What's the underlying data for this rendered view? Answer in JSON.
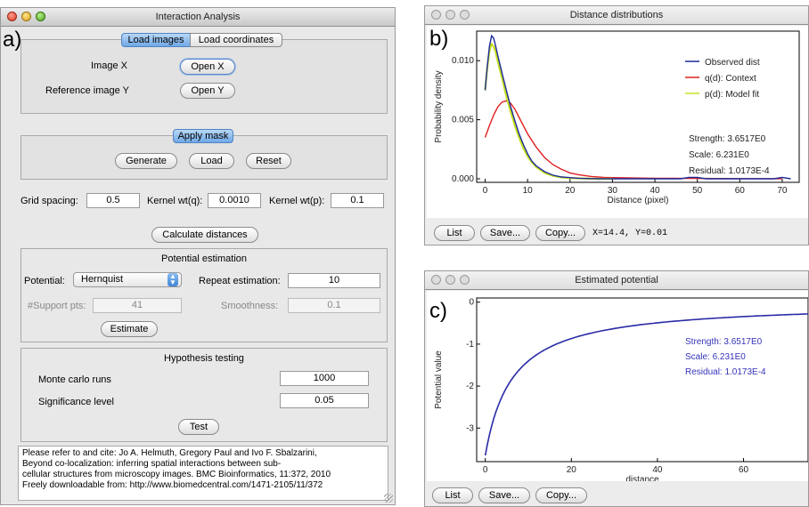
{
  "panel_letters": {
    "a": "a)",
    "b": "b)",
    "c": "c)"
  },
  "interaction_window": {
    "title": "Interaction Analysis",
    "tabs": [
      "Load images",
      "Load coordinates"
    ],
    "image_x_label": "Image X",
    "open_x_label": "Open X",
    "reference_label": "Reference image Y",
    "open_y_label": "Open Y",
    "apply_mask_label": "Apply mask",
    "generate_label": "Generate",
    "load_label": "Load",
    "reset_label": "Reset",
    "grid_spacing_label": "Grid spacing:",
    "grid_spacing_value": "0.5",
    "kernel_q_label": "Kernel wt(q):",
    "kernel_q_value": "0.0010",
    "kernel_p_label": "Kernel wt(p):",
    "kernel_p_value": "0.1",
    "calculate_label": "Calculate distances",
    "potential_estimation_title": "Potential estimation",
    "potential_label": "Potential:",
    "potential_value": "Hernquist",
    "repeat_label": "Repeat estimation:",
    "repeat_value": "10",
    "support_label": "#Support pts:",
    "support_value": "41",
    "smoothness_label": "Smoothness:",
    "smoothness_value": "0.1",
    "estimate_label": "Estimate",
    "hypothesis_title": "Hypothesis testing",
    "monte_carlo_label": "Monte carlo runs",
    "monte_carlo_value": "1000",
    "significance_label": "Significance level",
    "significance_value": "0.05",
    "test_label": "Test",
    "citation_lines": [
      "Please refer to and cite: Jo A. Helmuth, Gregory Paul and Ivo F. Sbalzarini,",
      "Beyond co-localization: inferring spatial interactions between sub-",
      "cellular structures from microscopy images. BMC Bioinformatics, 11:372, 2010",
      "Freely downloadable from: http://www.biomedcentral.com/1471-2105/11/372"
    ]
  },
  "distance_window": {
    "title": "Distance distributions",
    "list_label": "List",
    "save_label": "Save...",
    "copy_label": "Copy...",
    "coordinate_readout": "X=14.4, Y=0.01"
  },
  "potential_window": {
    "title": "Estimated potential",
    "list_label": "List",
    "save_label": "Save...",
    "copy_label": "Copy..."
  },
  "colors": {
    "observed": "#1a2a9a",
    "context": "#e02020",
    "model_fit": "#c8e020",
    "potential_line": "#2a2aa8",
    "annotation_text": "#3333bb",
    "tab_selected": "#7fb2ea"
  },
  "chart_data": [
    {
      "type": "line",
      "xlabel": "Distance (pixel)",
      "ylabel": "Probability density",
      "xlim": [
        -2,
        74
      ],
      "ylim": [
        -0.0003,
        0.0125
      ],
      "xticks": [
        "0",
        "10",
        "20",
        "30",
        "40",
        "50",
        "60",
        "70"
      ],
      "xtick_values": [
        0,
        10,
        20,
        30,
        40,
        50,
        60,
        70
      ],
      "yticks": [
        "0.000",
        "0.005",
        "0.010"
      ],
      "ytick_values": [
        0,
        0.005,
        0.01
      ],
      "legend_position": "top-right",
      "series": [
        {
          "name": "Observed dist",
          "color": "#1a2a9a",
          "x": [
            0,
            0.5,
            1,
            1.5,
            2,
            2.5,
            3,
            4,
            5,
            6,
            7,
            8,
            9,
            10,
            11,
            12,
            14,
            16,
            18,
            20,
            22,
            25,
            30,
            40,
            46,
            48,
            50,
            52,
            55,
            60,
            68,
            70,
            72
          ],
          "y": [
            0.0075,
            0.0095,
            0.0112,
            0.0121,
            0.0119,
            0.0112,
            0.0104,
            0.0089,
            0.0075,
            0.0061,
            0.0049,
            0.0038,
            0.0029,
            0.0021,
            0.0015,
            0.0011,
            0.0006,
            0.0003,
            0.00015,
            0.0001,
            5e-05,
            2e-05,
            0,
            0,
            0,
            0.00012,
            0.00012,
            0,
            0,
            0,
            0,
            0.00012,
            0
          ]
        },
        {
          "name": "q(d): Context",
          "color": "#e02020",
          "x": [
            0,
            1,
            2,
            3,
            4,
            5,
            6,
            7,
            8,
            10,
            12,
            14,
            16,
            18,
            20,
            22,
            25,
            28,
            30,
            35,
            40,
            45,
            50,
            60,
            70
          ],
          "y": [
            0.0035,
            0.0045,
            0.0054,
            0.0061,
            0.0065,
            0.0066,
            0.0064,
            0.0059,
            0.0052,
            0.0038,
            0.0027,
            0.0018,
            0.0012,
            0.0008,
            0.0005,
            0.00035,
            0.0002,
            0.00012,
            0.0001,
            7e-05,
            5e-05,
            4e-05,
            3e-05,
            2e-05,
            1e-05
          ]
        },
        {
          "name": "p(d): Model fit",
          "color": "#c8e020",
          "x": [
            0,
            0.5,
            1,
            1.5,
            2,
            2.5,
            3,
            4,
            5,
            6,
            7,
            8,
            9,
            10,
            11,
            12,
            14,
            16,
            18,
            20,
            25,
            30
          ],
          "y": [
            0.0075,
            0.0094,
            0.0108,
            0.0114,
            0.0112,
            0.0107,
            0.0099,
            0.0085,
            0.007,
            0.0057,
            0.0045,
            0.0035,
            0.0026,
            0.0019,
            0.0014,
            0.001,
            0.0005,
            0.00025,
            0.00012,
            6e-05,
            1e-05,
            0
          ]
        }
      ],
      "annotations": [
        "Strength: 3.6517E0",
        "Scale: 6.231E0",
        "Residual: 1.0173E-4"
      ]
    },
    {
      "type": "line",
      "xlabel": "distance",
      "ylabel": "Potential value",
      "xlim": [
        -2,
        75
      ],
      "ylim": [
        -3.8,
        0.1
      ],
      "xticks": [
        "0",
        "20",
        "40",
        "60"
      ],
      "xtick_values": [
        0,
        20,
        40,
        60
      ],
      "yticks": [
        "0",
        "-1",
        "-2",
        "-3"
      ],
      "ytick_values": [
        0,
        -1,
        -2,
        -3
      ],
      "series": [
        {
          "color": "#2a2aa8",
          "model": "hernquist",
          "strength": 3.6517,
          "scale": 6.231,
          "x_range": [
            0,
            75
          ]
        }
      ],
      "annotations": [
        "Strength: 3.6517E0",
        "Scale: 6.231E0",
        "Residual: 1.0173E-4"
      ]
    }
  ]
}
